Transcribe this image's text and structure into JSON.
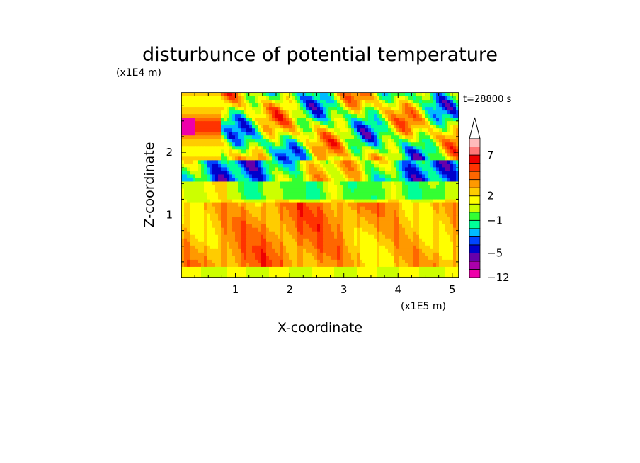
{
  "chart_data": {
    "type": "heatmap",
    "title": "disturbunce of potential temperature",
    "ylabel": "Z-coordinate",
    "xlabel": "X-coordinate",
    "y_unit": "(x1E4 m)",
    "x_unit": "(x1E5 m)",
    "time_label": "t=28800 s",
    "xlim": [
      0,
      5.12
    ],
    "ylim": [
      0,
      2.95
    ],
    "x_ticks": [
      1,
      2,
      3,
      4,
      5
    ],
    "x_tick_labels": [
      "1",
      "2",
      "3",
      "4",
      "5"
    ],
    "y_ticks": [
      1,
      2
    ],
    "y_tick_labels": [
      "1",
      "2"
    ],
    "colorbar": {
      "colors": [
        "#ee00aa",
        "#aa00aa",
        "#6600aa",
        "#0000cc",
        "#0044ff",
        "#00bbff",
        "#00ff99",
        "#33ff33",
        "#ccff00",
        "#ffff00",
        "#ffcc00",
        "#ff9900",
        "#ff6600",
        "#ff3300",
        "#ee0000",
        "#ff7777",
        "#ffbbbb"
      ],
      "extend_color": "#ffffff",
      "labels": [
        {
          "text": "7",
          "value": 7
        },
        {
          "text": "2",
          "value": 2
        },
        {
          "text": "−1",
          "value": -1
        },
        {
          "text": "−5",
          "value": -5
        },
        {
          "text": "−12",
          "value": -12
        }
      ]
    }
  }
}
